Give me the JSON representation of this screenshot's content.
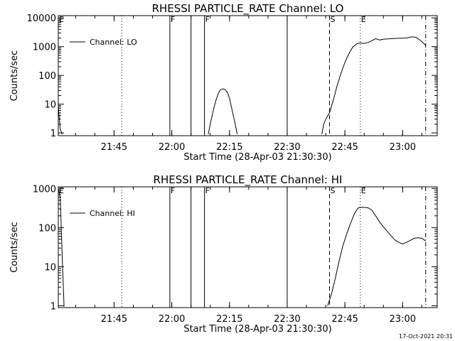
{
  "stamp": "17-Oct-2021 20:31",
  "chart_data": [
    {
      "type": "line",
      "title": "RHESSI PARTICLE_RATE Channel: LO",
      "ylabel": "Counts/sec",
      "xlabel": "Start Time (28-Apr-03 21:30:30)",
      "yscale": "log",
      "ylim": [
        0.8,
        12000
      ],
      "xlim": [
        "21:30:30",
        "23:09:00"
      ],
      "grid": false,
      "legend": {
        "placement": "top-left",
        "entries": [
          "Channel: LO"
        ]
      },
      "y_tick_labels": [
        {
          "value": 10000,
          "label": "10000"
        },
        {
          "value": 1000,
          "label": "1000"
        },
        {
          "value": 100,
          "label": "100"
        },
        {
          "value": 10,
          "label": "10"
        },
        {
          "value": 1,
          "label": "1"
        }
      ],
      "x_tick_labels": [
        {
          "t": "21:45",
          "label": "21:45"
        },
        {
          "t": "22:00",
          "label": "22:00"
        },
        {
          "t": "22:15",
          "label": "22:15"
        },
        {
          "t": "22:30",
          "label": "22:30"
        },
        {
          "t": "22:45",
          "label": "22:45"
        },
        {
          "t": "23:00",
          "label": "23:00"
        }
      ],
      "markers": [
        {
          "t": "21:30:30",
          "style": "dotted",
          "label": "E"
        },
        {
          "t": "21:47:00",
          "style": "dotted",
          "label": ""
        },
        {
          "t": "21:59:30",
          "style": "solid",
          "label": "F"
        },
        {
          "t": "22:05:00",
          "style": "solid",
          "label": ""
        },
        {
          "t": "22:08:30",
          "style": "solid",
          "label": "F"
        },
        {
          "t": "22:30:00",
          "style": "solid",
          "label": ""
        },
        {
          "t": "22:41:00",
          "style": "dashed",
          "label": "S"
        },
        {
          "t": "22:49:00",
          "style": "dotted",
          "label": "E"
        },
        {
          "t": "23:06:00",
          "style": "dashdot",
          "label": ""
        }
      ],
      "series": [
        {
          "name": "Channel: LO",
          "segments": [
            [
              [
                "21:30:30",
                8
              ],
              [
                "21:31:00",
                1.4
              ],
              [
                "21:31:30",
                0.9
              ]
            ],
            [
              [
                "22:09:30",
                0.9
              ],
              [
                "22:10:00",
                2
              ],
              [
                "22:10:30",
                4
              ],
              [
                "22:11:00",
                8
              ],
              [
                "22:11:30",
                14
              ],
              [
                "22:12:00",
                22
              ],
              [
                "22:12:30",
                30
              ],
              [
                "22:13:00",
                33
              ],
              [
                "22:13:30",
                34
              ],
              [
                "22:14:00",
                31
              ],
              [
                "22:14:30",
                25
              ],
              [
                "22:15:00",
                16
              ],
              [
                "22:15:30",
                8
              ],
              [
                "22:16:00",
                4
              ],
              [
                "22:16:30",
                2
              ],
              [
                "22:17:00",
                0.9
              ]
            ],
            [
              [
                "22:39:00",
                0.9
              ],
              [
                "22:39:30",
                2
              ],
              [
                "22:40:00",
                3
              ],
              [
                "22:41:00",
                5
              ],
              [
                "22:42:00",
                14
              ],
              [
                "22:43:00",
                45
              ],
              [
                "22:44:00",
                120
              ],
              [
                "22:45:00",
                280
              ],
              [
                "22:46:00",
                560
              ],
              [
                "22:47:00",
                950
              ],
              [
                "22:48:00",
                1250
              ],
              [
                "22:49:00",
                1350
              ],
              [
                "22:50:00",
                1300
              ],
              [
                "22:51:00",
                1400
              ],
              [
                "22:52:00",
                1600
              ],
              [
                "22:53:00",
                1900
              ],
              [
                "22:54:00",
                1700
              ],
              [
                "22:55:00",
                1800
              ],
              [
                "22:57:00",
                1900
              ],
              [
                "22:59:00",
                1950
              ],
              [
                "23:01:00",
                2000
              ],
              [
                "23:02:30",
                2200
              ],
              [
                "23:03:30",
                2100
              ],
              [
                "23:04:30",
                1700
              ],
              [
                "23:05:30",
                1300
              ],
              [
                "23:06:00",
                1100
              ]
            ]
          ]
        }
      ]
    },
    {
      "type": "line",
      "title": "RHESSI PARTICLE_RATE Channel: HI",
      "ylabel": "Counts/sec",
      "xlabel": "Start Time (28-Apr-03 21:30:30)",
      "yscale": "log",
      "ylim": [
        0.9,
        1100
      ],
      "xlim": [
        "21:30:30",
        "23:09:00"
      ],
      "grid": false,
      "legend": {
        "placement": "top-left",
        "entries": [
          "Channel: HI"
        ]
      },
      "y_tick_labels": [
        {
          "value": 1000,
          "label": "1000"
        },
        {
          "value": 100,
          "label": "100"
        },
        {
          "value": 10,
          "label": "10"
        },
        {
          "value": 1,
          "label": "1"
        }
      ],
      "x_tick_labels": [
        {
          "t": "21:45",
          "label": "21:45"
        },
        {
          "t": "22:00",
          "label": "22:00"
        },
        {
          "t": "22:15",
          "label": "22:15"
        },
        {
          "t": "22:30",
          "label": "22:30"
        },
        {
          "t": "22:45",
          "label": "22:45"
        },
        {
          "t": "23:00",
          "label": "23:00"
        }
      ],
      "markers": [
        {
          "t": "21:30:30",
          "style": "dotted",
          "label": "E"
        },
        {
          "t": "21:47:00",
          "style": "dotted",
          "label": ""
        },
        {
          "t": "21:59:30",
          "style": "solid",
          "label": "F"
        },
        {
          "t": "22:05:00",
          "style": "solid",
          "label": ""
        },
        {
          "t": "22:08:30",
          "style": "solid",
          "label": "F"
        },
        {
          "t": "22:30:00",
          "style": "solid",
          "label": ""
        },
        {
          "t": "22:41:00",
          "style": "dashed",
          "label": "S"
        },
        {
          "t": "22:49:00",
          "style": "dotted",
          "label": "E"
        },
        {
          "t": "23:06:00",
          "style": "dashdot",
          "label": ""
        }
      ],
      "series": [
        {
          "name": "Channel: HI",
          "segments": [
            [
              [
                "21:30:30",
                1000
              ],
              [
                "21:31:00",
                600
              ],
              [
                "21:31:30",
                20
              ],
              [
                "21:32:00",
                0.95
              ]
            ],
            [
              [
                "22:40:30",
                1
              ],
              [
                "22:41:30",
                2
              ],
              [
                "22:42:30",
                5
              ],
              [
                "22:43:30",
                14
              ],
              [
                "22:44:30",
                35
              ],
              [
                "22:45:30",
                70
              ],
              [
                "22:46:30",
                130
              ],
              [
                "22:47:30",
                230
              ],
              [
                "22:48:30",
                320
              ],
              [
                "22:49:30",
                330
              ],
              [
                "22:51:00",
                320
              ],
              [
                "22:52:00",
                280
              ],
              [
                "22:53:00",
                200
              ],
              [
                "22:54:00",
                140
              ],
              [
                "22:55:00",
                105
              ],
              [
                "22:56:00",
                80
              ],
              [
                "22:57:00",
                62
              ],
              [
                "22:58:00",
                48
              ],
              [
                "22:59:00",
                42
              ],
              [
                "23:00:00",
                38
              ],
              [
                "23:01:00",
                42
              ],
              [
                "23:02:00",
                47
              ],
              [
                "23:03:00",
                53
              ],
              [
                "23:04:00",
                55
              ],
              [
                "23:05:00",
                53
              ],
              [
                "23:06:00",
                45
              ]
            ]
          ]
        }
      ]
    }
  ]
}
